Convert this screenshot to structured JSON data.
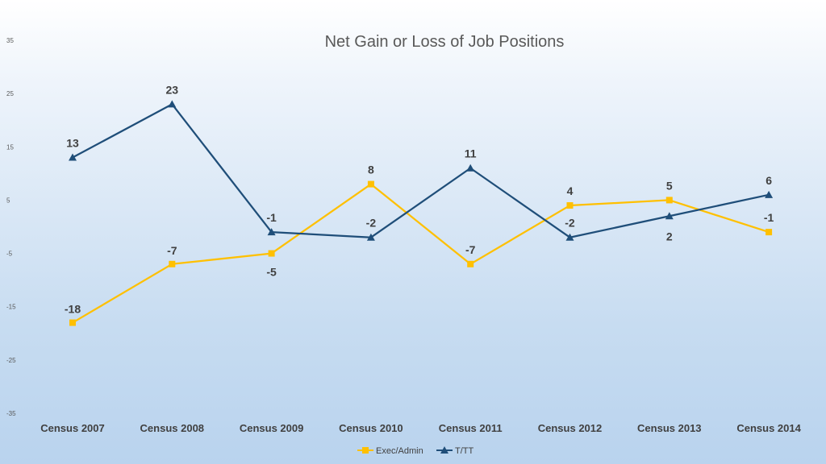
{
  "chart_data": {
    "type": "line",
    "title": "Net Gain or Loss of Job Positions",
    "categories": [
      "Census 2007",
      "Census 2008",
      "Census 2009",
      "Census 2010",
      "Census 2011",
      "Census 2012",
      "Census 2013",
      "Census 2014"
    ],
    "yticks": [
      "35",
      "25",
      "15",
      "5",
      "-5",
      "-15",
      "-25",
      "-35"
    ],
    "ylim": [
      -35,
      35
    ],
    "grid": false,
    "legend_position": "bottom",
    "series": [
      {
        "name": "Exec/Admin",
        "color": "#ffc000",
        "marker": "square",
        "values": [
          -18,
          -7,
          -5,
          8,
          -7,
          4,
          5,
          -1
        ],
        "labels": [
          "-18",
          "-7",
          "-5",
          "8",
          "-7",
          "4",
          "5",
          "-1"
        ]
      },
      {
        "name": "T/TT",
        "color": "#1f4e79",
        "marker": "triangle",
        "values": [
          13,
          23,
          -1,
          -2,
          11,
          -2,
          2,
          6
        ],
        "labels": [
          "13",
          "23",
          "-1",
          "-2",
          "11",
          "-2",
          "2",
          "6"
        ]
      }
    ]
  }
}
